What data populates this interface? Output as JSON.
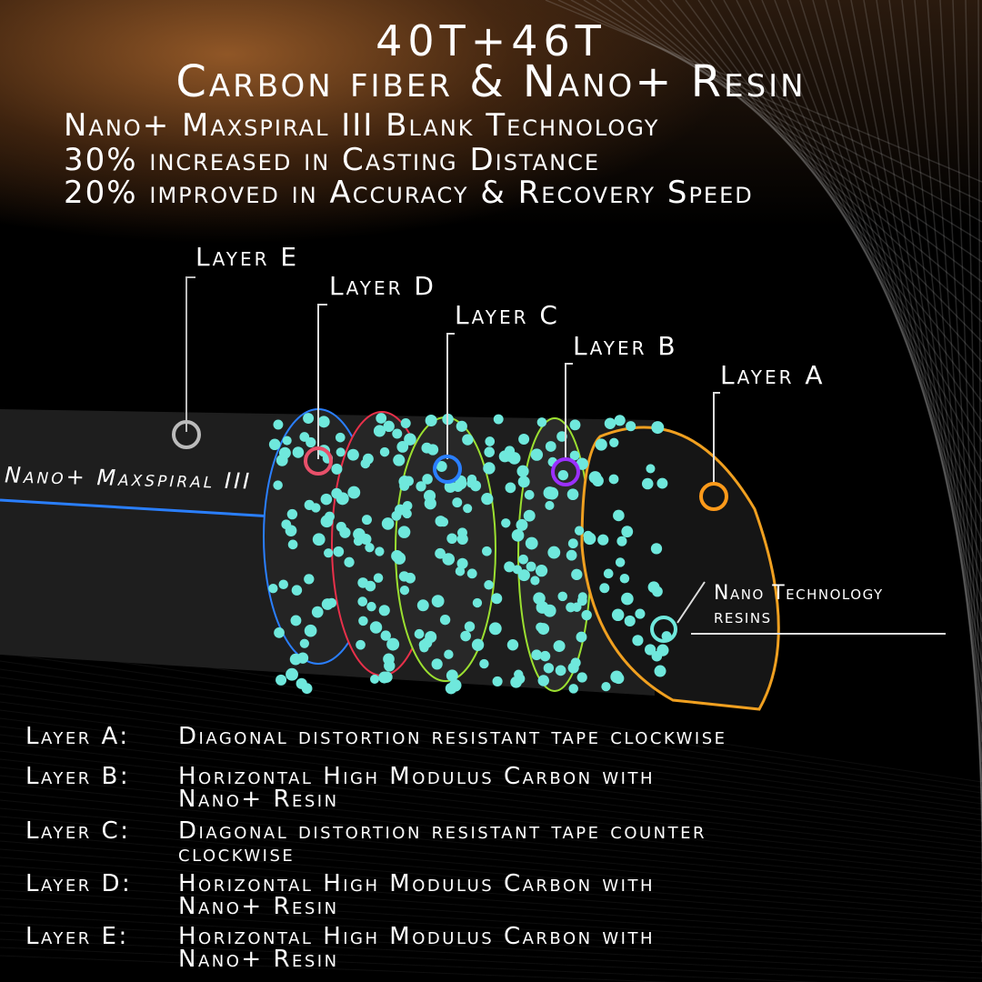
{
  "header": {
    "title": "40T+46T",
    "subtitle": "Carbon fiber & Nano+ Resin",
    "lines": [
      "Nano+ Maxspiral III Blank Technology",
      "30% increased in Casting Distance",
      "20% improved in Accuracy & Recovery Speed"
    ]
  },
  "diagram": {
    "rod_label": "Nano+ Maxspiral III",
    "layers": [
      {
        "label": "Layer E",
        "color": "#bbbbbb"
      },
      {
        "label": "Layer D",
        "color": "#e8506a"
      },
      {
        "label": "Layer C",
        "color": "#2a7fff"
      },
      {
        "label": "Layer B",
        "color": "#9b30ff"
      },
      {
        "label": "Layer A",
        "color": "#ff9a1a"
      }
    ],
    "resin_label_1": "Nano Technology",
    "resin_label_2": "resins",
    "resin_color": "#6fe8dc"
  },
  "descriptions": [
    {
      "key": "Layer A:",
      "text": "Diagonal distortion resistant tape clockwise",
      "text2": ""
    },
    {
      "key": "Layer B:",
      "text": "Horizontal High Modulus Carbon with",
      "text2": "Nano+ Resin"
    },
    {
      "key": "Layer C:",
      "text": "Diagonal distortion resistant tape counter",
      "text2": "clockwise"
    },
    {
      "key": "Layer D:",
      "text": "Horizontal High Modulus Carbon with",
      "text2": "Nano+ Resin"
    },
    {
      "key": "Layer E:",
      "text": "Horizontal High Modulus Carbon with",
      "text2": "Nano+ Resin"
    }
  ]
}
